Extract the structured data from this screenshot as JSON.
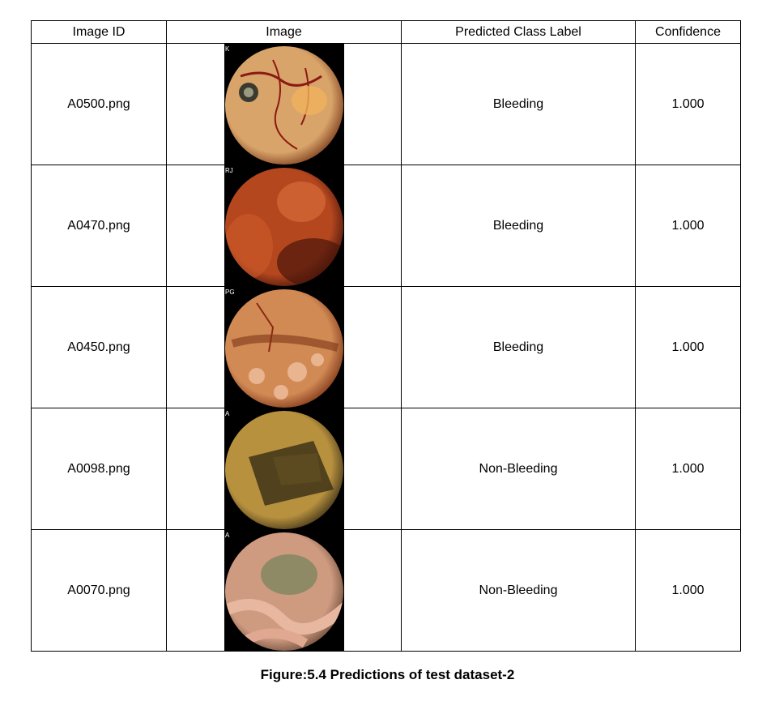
{
  "table": {
    "headers": [
      "Image ID",
      "Image",
      "Predicted Class Label",
      "Confidence"
    ],
    "rows": [
      {
        "id": "A0500.png",
        "label": "Bleeding",
        "confidence": "1.000",
        "corner": "K",
        "thumb": {
          "base": "#d9a46a",
          "dark": "#7a3b1c",
          "accent": "#8b1a12",
          "theme": "bleed-veins"
        }
      },
      {
        "id": "A0470.png",
        "label": "Bleeding",
        "confidence": "1.000",
        "corner": "RJ",
        "thumb": {
          "base": "#b5471f",
          "dark": "#4a160a",
          "accent": "#e0743f",
          "theme": "dark-red"
        }
      },
      {
        "id": "A0450.png",
        "label": "Bleeding",
        "confidence": "1.000",
        "corner": "PG",
        "thumb": {
          "base": "#d28a55",
          "dark": "#7d3617",
          "accent": "#e8b590",
          "theme": "mottled"
        }
      },
      {
        "id": "A0098.png",
        "label": "Non-Bleeding",
        "confidence": "1.000",
        "corner": "A",
        "thumb": {
          "base": "#b8913f",
          "dark": "#3e3217",
          "accent": "#d8b46a",
          "theme": "tunnel"
        }
      },
      {
        "id": "A0070.png",
        "label": "Non-Bleeding",
        "confidence": "1.000",
        "corner": "A",
        "thumb": {
          "base": "#cf9b80",
          "dark": "#6b4a38",
          "accent": "#8e8a66",
          "theme": "folds"
        }
      }
    ]
  },
  "caption": "Figure:5.4 Predictions of test dataset-2"
}
